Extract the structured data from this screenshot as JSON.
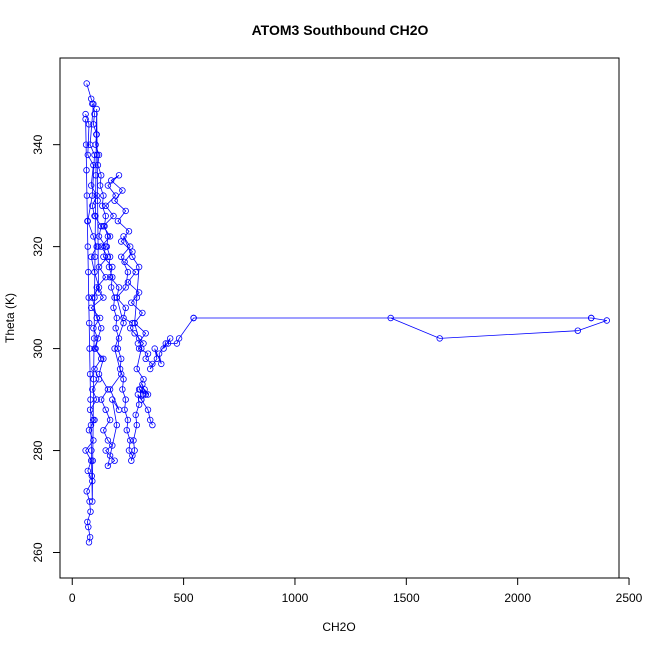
{
  "chart_data": {
    "type": "scatter",
    "title": "ATOM3 Southbound CH2O",
    "xlabel": "CH2O",
    "ylabel": "Theta (K)",
    "xlim": [
      -55,
      2455
    ],
    "ylim": [
      255,
      357
    ],
    "xticks": [
      0,
      500,
      1000,
      1500,
      2000,
      2500
    ],
    "yticks": [
      260,
      280,
      300,
      320,
      340
    ],
    "grid": false,
    "legend": "none",
    "style": "points-and-lines",
    "colors": {
      "series": "#0000ff",
      "axes": "#000000",
      "background": "#ffffff"
    },
    "series": [
      {
        "x": [
          60,
          75,
          70,
          95,
          85,
          110,
          90,
          100,
          130,
          120,
          150,
          140,
          180,
          170,
          210,
          200,
          240,
          230,
          270,
          260,
          300,
          280,
          320,
          300,
          340,
          330,
          360,
          350,
          380,
          370,
          400,
          390,
          420,
          410,
          440,
          430,
          470,
          480,
          545,
          2330,
          1430,
          1650,
          2270,
          2400,
          2330,
          545
        ],
        "y": [
          346,
          344,
          338,
          336,
          332,
          330,
          328,
          326,
          324,
          322,
          320,
          318,
          316,
          314,
          312,
          310,
          308,
          306,
          305,
          304,
          302,
          303,
          301,
          300,
          299,
          298,
          297,
          296,
          298,
          300,
          297,
          299,
          301,
          300,
          302,
          301,
          301,
          302,
          306,
          306,
          306,
          302,
          303.5,
          305.5,
          306,
          306
        ]
      },
      {
        "x": [
          65,
          85,
          95,
          80,
          100,
          90,
          70,
          95,
          110,
          85,
          100,
          120,
          90,
          110,
          130,
          100,
          140,
          120,
          160,
          130,
          150,
          170,
          140,
          160,
          180,
          150,
          170,
          190,
          160,
          200,
          180,
          210,
          170,
          220,
          190,
          230,
          200,
          240,
          250,
          220,
          260,
          230,
          270,
          300,
          290,
          280,
          310,
          290,
          320,
          300,
          330,
          310,
          340,
          350,
          360
        ],
        "y": [
          352,
          349,
          348,
          340,
          338,
          330,
          325,
          322,
          320,
          318,
          315,
          312,
          310,
          306,
          304,
          300,
          298,
          295,
          292,
          290,
          288,
          286,
          284,
          282,
          281,
          280,
          279,
          278,
          277,
          285,
          290,
          288,
          292,
          295,
          300,
          305,
          310,
          312,
          315,
          318,
          320,
          322,
          318,
          316,
          310,
          305,
          300,
          296,
          294,
          292,
          291,
          290,
          288,
          286,
          285
        ]
      },
      {
        "x": [
          75,
          80,
          72,
          68,
          82,
          78,
          65,
          90,
          70,
          85,
          60,
          95,
          75,
          100,
          80,
          110,
          90,
          120,
          100,
          130,
          105,
          115,
          95,
          125,
          85,
          140,
          110,
          150,
          120,
          160,
          130,
          170,
          140,
          185,
          150,
          195,
          160,
          210,
          175,
          225,
          190,
          240,
          205,
          255,
          220,
          270,
          235,
          285,
          250,
          300,
          265,
          315,
          280,
          330,
          295
        ],
        "y": [
          262,
          263,
          265,
          266,
          268,
          270,
          272,
          274,
          276,
          278,
          280,
          282,
          284,
          286,
          288,
          290,
          292,
          294,
          296,
          298,
          300,
          302,
          304,
          306,
          308,
          310,
          312,
          314,
          316,
          318,
          320,
          322,
          324,
          326,
          328,
          330,
          332,
          334,
          333,
          331,
          329,
          327,
          325,
          323,
          321,
          319,
          317,
          315,
          313,
          311,
          309,
          307,
          305,
          303,
          301
        ]
      },
      {
        "x": [
          90,
          100,
          95,
          110,
          105,
          120,
          115,
          130,
          125,
          140,
          135,
          150,
          145,
          160,
          155,
          170,
          165,
          180,
          175,
          190,
          185,
          200,
          195,
          210,
          205,
          220,
          215,
          230,
          225,
          240,
          235,
          250,
          245,
          260,
          255,
          270,
          265,
          280,
          275,
          290,
          285,
          300,
          295,
          310,
          305,
          320,
          315,
          330,
          325,
          340
        ],
        "y": [
          348,
          346,
          344,
          342,
          340,
          338,
          336,
          334,
          332,
          330,
          328,
          326,
          324,
          322,
          320,
          318,
          316,
          314,
          312,
          310,
          308,
          306,
          304,
          302,
          300,
          298,
          296,
          294,
          292,
          290,
          288,
          286,
          284,
          282,
          280,
          279,
          278,
          280,
          282,
          285,
          287,
          289,
          291,
          290,
          292,
          291,
          293,
          291,
          292,
          291
        ]
      },
      {
        "x": [
          60,
          62,
          64,
          66,
          68,
          70,
          72,
          74,
          76,
          78,
          80,
          82,
          84,
          86,
          88,
          90,
          92,
          94,
          96,
          98,
          100,
          102,
          104,
          106,
          108,
          110,
          112,
          114,
          116,
          118
        ],
        "y": [
          345,
          340,
          335,
          330,
          325,
          320,
          315,
          310,
          305,
          300,
          295,
          290,
          285,
          280,
          275,
          270,
          278,
          286,
          294,
          302,
          310,
          318,
          326,
          334,
          342,
          347,
          338,
          329,
          320,
          311
        ]
      }
    ]
  }
}
